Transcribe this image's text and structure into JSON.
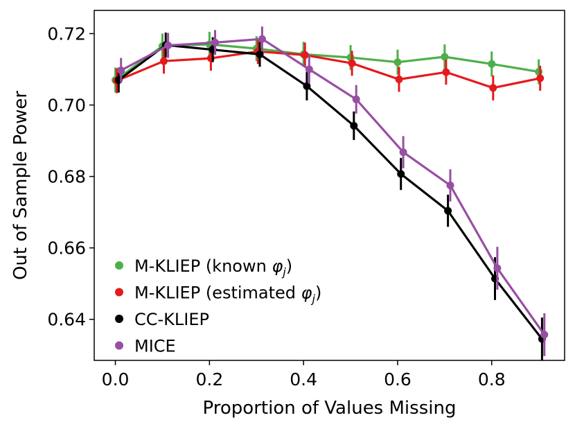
{
  "chart_data": {
    "type": "line",
    "title": "",
    "xlabel": "Proportion of Values Missing",
    "ylabel": "Out of Sample Power",
    "xlim": [
      -0.045,
      0.955
    ],
    "ylim": [
      0.6285,
      0.7265
    ],
    "xticks": [
      0.0,
      0.2,
      0.4,
      0.6,
      0.8
    ],
    "xtick_labels": [
      "0.0",
      "0.2",
      "0.4",
      "0.6",
      "0.8"
    ],
    "yticks": [
      0.64,
      0.66,
      0.68,
      0.7,
      0.72
    ],
    "ytick_labels": [
      "0.64",
      "0.66",
      "0.68",
      "0.70",
      "0.72"
    ],
    "grid": false,
    "legend_position": "lower-left",
    "series": [
      {
        "name": "M-KLIEP (known φj)",
        "legend_main": "M-KLIEP (known ",
        "legend_sym": "φ",
        "legend_sub": "j",
        "legend_tail": ")",
        "color": "#4daf4a",
        "x": [
          0.0,
          0.1,
          0.2,
          0.3,
          0.4,
          0.5,
          0.6,
          0.7,
          0.8,
          0.9
        ],
        "y": [
          0.707,
          0.7165,
          0.717,
          0.7158,
          0.7142,
          0.7133,
          0.712,
          0.7135,
          0.7115,
          0.7093
        ],
        "err": [
          0.0035,
          0.0035,
          0.0035,
          0.0035,
          0.0035,
          0.0035,
          0.0035,
          0.0035,
          0.0035,
          0.0035
        ]
      },
      {
        "name": "M-KLIEP (estimated φj)",
        "legend_main": "M-KLIEP (estimated ",
        "legend_sym": "φ",
        "legend_sub": "j",
        "legend_tail": ")",
        "color": "#e41a1c",
        "x": [
          0.003,
          0.103,
          0.203,
          0.303,
          0.403,
          0.503,
          0.603,
          0.703,
          0.803,
          0.903
        ],
        "y": [
          0.7068,
          0.7123,
          0.7131,
          0.715,
          0.714,
          0.7117,
          0.7072,
          0.7092,
          0.7048,
          0.7075
        ],
        "err": [
          0.0035,
          0.0035,
          0.0035,
          0.0035,
          0.0035,
          0.0035,
          0.0035,
          0.0035,
          0.0035,
          0.0035
        ]
      },
      {
        "name": "CC-KLIEP",
        "legend_main": "CC-KLIEP",
        "legend_sym": "",
        "legend_sub": "",
        "legend_tail": "",
        "color": "#000000",
        "x": [
          0.007,
          0.107,
          0.207,
          0.307,
          0.407,
          0.507,
          0.607,
          0.707,
          0.807,
          0.907
        ],
        "y": [
          0.707,
          0.7168,
          0.7155,
          0.7142,
          0.7053,
          0.6942,
          0.6807,
          0.6704,
          0.6514,
          0.6345
        ],
        "err": [
          0.0035,
          0.0035,
          0.0035,
          0.0035,
          0.004,
          0.004,
          0.0045,
          0.0045,
          0.006,
          0.006
        ]
      },
      {
        "name": "MICE",
        "legend_main": "MICE",
        "legend_sym": "",
        "legend_sub": "",
        "legend_tail": "",
        "color": "#984ea3",
        "x": [
          0.012,
          0.112,
          0.212,
          0.312,
          0.412,
          0.512,
          0.612,
          0.712,
          0.812,
          0.912
        ],
        "y": [
          0.7097,
          0.7167,
          0.7175,
          0.7185,
          0.71,
          0.7016,
          0.6868,
          0.6775,
          0.6543,
          0.6357
        ],
        "err": [
          0.0035,
          0.0035,
          0.0035,
          0.0035,
          0.004,
          0.004,
          0.0045,
          0.0045,
          0.006,
          0.006
        ]
      }
    ]
  }
}
